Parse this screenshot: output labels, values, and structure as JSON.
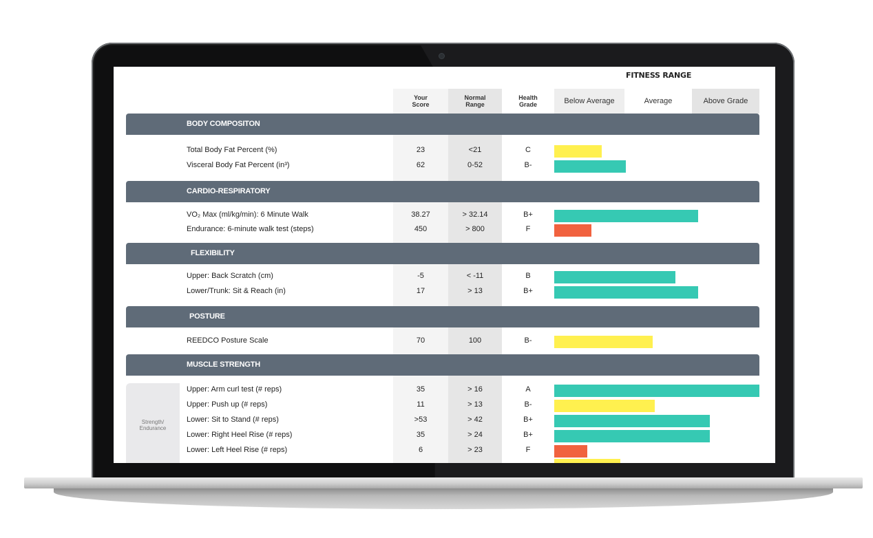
{
  "report": {
    "fitness_range_title": "FITNESS RANGE",
    "columns": {
      "your_score": "Your\nScore",
      "normal_range": "Normal\nRange",
      "health_grade": "Health\nGrade",
      "below_average": "Below Average",
      "average": "Average",
      "above_grade": "Above Grade"
    },
    "colors": {
      "yellow": "#fff04f",
      "teal": "#36c9b3",
      "red": "#f1623f",
      "section": "#5f6b78"
    },
    "sections": {
      "body": "BODY COMPOSITON",
      "cardio": "CARDIO-RESPIRATORY",
      "flex": "FLEXIBILITY",
      "posture": "POSTURE",
      "muscle": "MUSCLE STRENGTH"
    },
    "side_label": "Strength/\nEndurance",
    "rows": [
      {
        "label": "Total Body Fat Percent (%)",
        "score": "23",
        "range": "<21",
        "grade": "C",
        "bar": "yellow",
        "level": 0.23
      },
      {
        "label": "Visceral Body Fat Percent (in³)",
        "score": "62",
        "range": "0-52",
        "grade": "B-",
        "bar": "teal",
        "level": 0.35
      },
      {
        "label": "VO₂ Max (ml/kg/min): 6 Minute Walk",
        "score": "38.27",
        "range": "> 32.14",
        "grade": "B+",
        "bar": "teal",
        "level": 0.7
      },
      {
        "label": "Endurance: 6-minute walk test (steps)",
        "score": "450",
        "range": "> 800",
        "grade": "F",
        "bar": "red",
        "level": 0.18
      },
      {
        "label": "Upper: Back Scratch (cm)",
        "score": "-5",
        "range": "< -11",
        "grade": "B",
        "bar": "teal",
        "level": 0.59
      },
      {
        "label": "Lower/Trunk: Sit & Reach (in)",
        "score": "17",
        "range": "> 13",
        "grade": "B+",
        "bar": "teal",
        "level": 0.7
      },
      {
        "label": "REEDCO Posture Scale",
        "score": "70",
        "range": "100",
        "grade": "B-",
        "bar": "yellow",
        "level": 0.48
      },
      {
        "label": "Upper: Arm curl test (# reps)",
        "score": "35",
        "range": "> 16",
        "grade": "A",
        "bar": "teal",
        "level": 1.0
      },
      {
        "label": "Upper: Push up (# reps)",
        "score": "11",
        "range": "> 13",
        "grade": "B-",
        "bar": "yellow",
        "level": 0.49
      },
      {
        "label": "Lower: Sit to Stand (# reps)",
        "score": ">53",
        "range": "> 42",
        "grade": "B+",
        "bar": "teal",
        "level": 0.76
      },
      {
        "label": "Lower: Right Heel Rise (# reps)",
        "score": "35",
        "range": "> 24",
        "grade": "B+",
        "bar": "teal",
        "level": 0.76
      },
      {
        "label": "Lower: Left Heel Rise (# reps)",
        "score": "6",
        "range": "> 23",
        "grade": "F",
        "bar": "red",
        "level": 0.16
      }
    ]
  }
}
